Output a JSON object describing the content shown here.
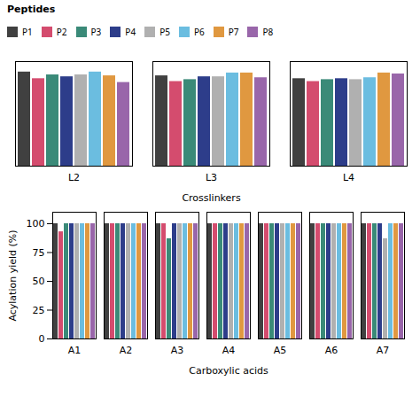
{
  "chart_data": [
    {
      "type": "bar",
      "categories": [
        "L2",
        "L3",
        "L4"
      ],
      "series": [
        {
          "name": "P1",
          "color": "#404040",
          "values": [
            99,
            95,
            92
          ]
        },
        {
          "name": "P2",
          "color": "#d44c6e",
          "values": [
            92,
            89,
            89
          ]
        },
        {
          "name": "P3",
          "color": "#3a8a78",
          "values": [
            96,
            91,
            91
          ]
        },
        {
          "name": "P4",
          "color": "#2d3d8a",
          "values": [
            94,
            94,
            92
          ]
        },
        {
          "name": "P5",
          "color": "#b0b0b0",
          "values": [
            96,
            94,
            91
          ]
        },
        {
          "name": "P6",
          "color": "#6bbde0",
          "values": [
            99,
            98,
            93
          ]
        },
        {
          "name": "P7",
          "color": "#e09840",
          "values": [
            95,
            98,
            98
          ]
        },
        {
          "name": "P8",
          "color": "#9966aa",
          "values": [
            88,
            93,
            97
          ]
        }
      ],
      "ylim": [
        0,
        110
      ],
      "tick_labels": "x",
      "xlabel": "Crosslinkers",
      "legend_title": "Peptides"
    },
    {
      "type": "bar",
      "categories": [
        "A1",
        "A2",
        "A3",
        "A4",
        "A5",
        "A6",
        "A7"
      ],
      "series": [
        {
          "name": "P1",
          "color": "#404040",
          "values": [
            100,
            100,
            100,
            100,
            100,
            100,
            100
          ]
        },
        {
          "name": "P2",
          "color": "#d44c6e",
          "values": [
            93,
            100,
            100,
            100,
            100,
            100,
            100
          ]
        },
        {
          "name": "P3",
          "color": "#3a8a78",
          "values": [
            100,
            100,
            87,
            100,
            100,
            100,
            100
          ]
        },
        {
          "name": "P4",
          "color": "#2d3d8a",
          "values": [
            100,
            100,
            100,
            100,
            100,
            100,
            100
          ]
        },
        {
          "name": "P5",
          "color": "#b0b0b0",
          "values": [
            100,
            100,
            100,
            100,
            100,
            100,
            87
          ]
        },
        {
          "name": "P6",
          "color": "#6bbde0",
          "values": [
            100,
            100,
            100,
            100,
            100,
            100,
            100
          ]
        },
        {
          "name": "P7",
          "color": "#e09840",
          "values": [
            100,
            100,
            100,
            100,
            100,
            100,
            100
          ]
        },
        {
          "name": "P8",
          "color": "#9966aa",
          "values": [
            100,
            100,
            100,
            100,
            100,
            100,
            100
          ]
        }
      ],
      "ylim": [
        0,
        110
      ],
      "yticks": [
        0,
        25,
        50,
        75,
        100
      ],
      "xlabel": "Carboxylic acids",
      "ylabel": "Acylation yield (%)"
    }
  ]
}
